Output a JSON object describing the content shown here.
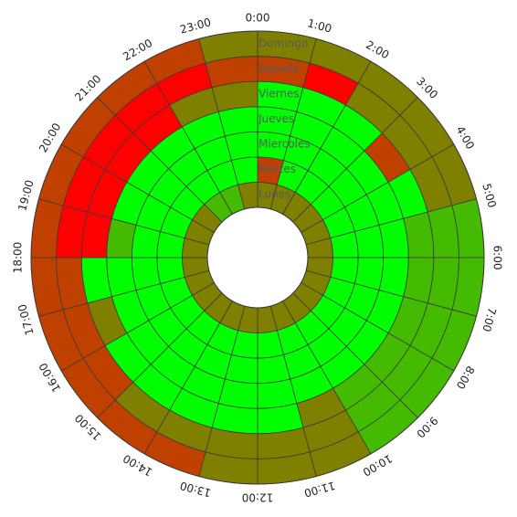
{
  "chart_data": {
    "type": "heatmap",
    "subtype": "polar",
    "hours": [
      "0:00",
      "1:00",
      "2:00",
      "3:00",
      "4:00",
      "5:00",
      "6:00",
      "7:00",
      "8:00",
      "9:00",
      "10:00",
      "11:00",
      "12:00",
      "13:00",
      "14:00",
      "15:00",
      "16:00",
      "17:00",
      "18:00",
      "19:00",
      "20:00",
      "21:00",
      "22:00",
      "23:00"
    ],
    "days_inner_to_outer": [
      "Lunes",
      "Martes",
      "Miercoles",
      "Jueves",
      "Viernes",
      "Sabado",
      "Domingo"
    ],
    "status_colors": {
      "B": "#00ff00",
      "G": "#44bb00",
      "O": "#7f7f00",
      "D": "#c04000",
      "R": "#ff0000"
    },
    "values": [
      [
        "O",
        "O",
        "O",
        "O",
        "O",
        "O",
        "O",
        "O",
        "O",
        "O",
        "O",
        "O",
        "O",
        "O",
        "O",
        "O",
        "O",
        "O",
        "O",
        "O",
        "O",
        "G",
        "G",
        "O"
      ],
      [
        "D",
        "B",
        "B",
        "B",
        "B",
        "B",
        "B",
        "B",
        "B",
        "B",
        "B",
        "B",
        "B",
        "B",
        "B",
        "B",
        "B",
        "B",
        "B",
        "B",
        "B",
        "B",
        "B",
        "B"
      ],
      [
        "B",
        "B",
        "B",
        "B",
        "B",
        "B",
        "B",
        "B",
        "B",
        "B",
        "B",
        "B",
        "B",
        "B",
        "B",
        "B",
        "B",
        "B",
        "B",
        "B",
        "B",
        "B",
        "B",
        "B"
      ],
      [
        "B",
        "B",
        "B",
        "B",
        "B",
        "B",
        "B",
        "B",
        "B",
        "B",
        "B",
        "B",
        "B",
        "B",
        "B",
        "B",
        "B",
        "B",
        "G",
        "B",
        "B",
        "B",
        "B",
        "B"
      ],
      [
        "B",
        "B",
        "B",
        "D",
        "B",
        "G",
        "G",
        "G",
        "G",
        "G",
        "O",
        "B",
        "B",
        "B",
        "B",
        "B",
        "O",
        "B",
        "R",
        "R",
        "R",
        "R",
        "O",
        "O"
      ],
      [
        "D",
        "R",
        "O",
        "O",
        "O",
        "G",
        "G",
        "G",
        "G",
        "G",
        "O",
        "O",
        "O",
        "O",
        "O",
        "D",
        "D",
        "D",
        "R",
        "R",
        "R",
        "R",
        "R",
        "D"
      ],
      [
        "O",
        "O",
        "O",
        "O",
        "O",
        "G",
        "G",
        "G",
        "G",
        "G",
        "O",
        "O",
        "O",
        "D",
        "D",
        "D",
        "D",
        "D",
        "D",
        "D",
        "D",
        "D",
        "D",
        "O"
      ]
    ]
  }
}
